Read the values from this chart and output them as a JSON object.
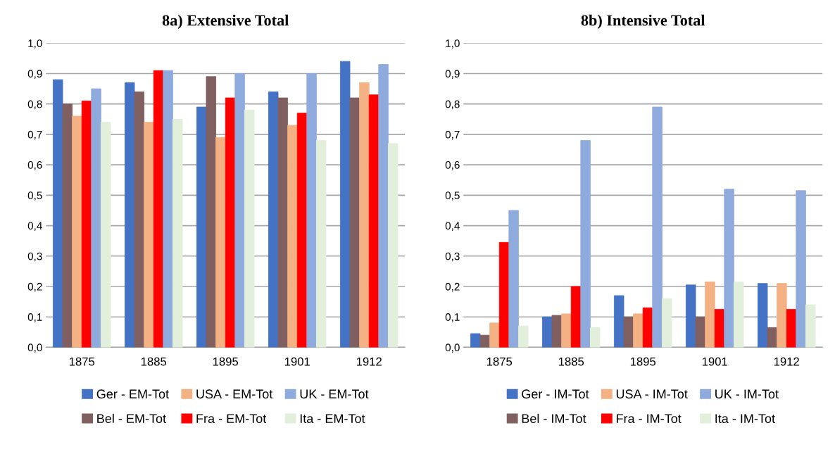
{
  "chart_data": [
    {
      "type": "bar",
      "title": "8a) Extensive Total",
      "categories": [
        "1875",
        "1885",
        "1895",
        "1901",
        "1912"
      ],
      "series": [
        {
          "name": "Ger - EM-Tot",
          "color": "#4472c4",
          "values": [
            0.88,
            0.87,
            0.79,
            0.84,
            0.94
          ]
        },
        {
          "name": "Bel - EM-Tot",
          "color": "#7f5f5f",
          "values": [
            0.8,
            0.84,
            0.89,
            0.82,
            0.82
          ]
        },
        {
          "name": "USA - EM-Tot",
          "color": "#f4b183",
          "values": [
            0.76,
            0.74,
            0.69,
            0.73,
            0.87
          ]
        },
        {
          "name": "Fra - EM-Tot",
          "color": "#ff0000",
          "values": [
            0.81,
            0.91,
            0.82,
            0.77,
            0.83
          ]
        },
        {
          "name": "UK - EM-Tot",
          "color": "#8faadc",
          "values": [
            0.85,
            0.91,
            0.9,
            0.9,
            0.93
          ]
        },
        {
          "name": "Ita - EM-Tot",
          "color": "#e2efda",
          "values": [
            0.74,
            0.75,
            0.78,
            0.68,
            0.67
          ]
        }
      ],
      "ylim": [
        0,
        1
      ],
      "yticks": [
        {
          "value": 0,
          "label": "0,0"
        },
        {
          "value": 0.1,
          "label": "0,1"
        },
        {
          "value": 0.2,
          "label": "0,2"
        },
        {
          "value": 0.3,
          "label": "0,3"
        },
        {
          "value": 0.4,
          "label": "0,4"
        },
        {
          "value": 0.5,
          "label": "0,5"
        },
        {
          "value": 0.6,
          "label": "0,6"
        },
        {
          "value": 0.7,
          "label": "0,7"
        },
        {
          "value": 0.8,
          "label": "0,8"
        },
        {
          "value": 0.9,
          "label": "0,9"
        },
        {
          "value": 1,
          "label": "1,0"
        }
      ],
      "grid": "y",
      "legend": "bottom"
    },
    {
      "type": "bar",
      "title": "8b) Intensive Total",
      "categories": [
        "1875",
        "1885",
        "1895",
        "1901",
        "1912"
      ],
      "series": [
        {
          "name": "Ger - IM-Tot",
          "color": "#4472c4",
          "values": [
            0.045,
            0.1,
            0.17,
            0.205,
            0.21
          ]
        },
        {
          "name": "Bel - IM-Tot",
          "color": "#7f5f5f",
          "values": [
            0.04,
            0.105,
            0.1,
            0.1,
            0.065
          ]
        },
        {
          "name": "USA - IM-Tot",
          "color": "#f4b183",
          "values": [
            0.08,
            0.11,
            0.11,
            0.215,
            0.21
          ]
        },
        {
          "name": "Fra - IM-Tot",
          "color": "#ff0000",
          "values": [
            0.345,
            0.2,
            0.13,
            0.125,
            0.125
          ]
        },
        {
          "name": "UK - IM-Tot",
          "color": "#8faadc",
          "values": [
            0.45,
            0.68,
            0.79,
            0.52,
            0.515
          ]
        },
        {
          "name": "Ita - IM-Tot",
          "color": "#e2efda",
          "values": [
            0.07,
            0.065,
            0.16,
            0.215,
            0.14
          ]
        }
      ],
      "ylim": [
        0,
        1
      ],
      "yticks": [
        {
          "value": 0,
          "label": "0,0"
        },
        {
          "value": 0.1,
          "label": "0,1"
        },
        {
          "value": 0.2,
          "label": "0,2"
        },
        {
          "value": 0.3,
          "label": "0,3"
        },
        {
          "value": 0.4,
          "label": "0,4"
        },
        {
          "value": 0.5,
          "label": "0,5"
        },
        {
          "value": 0.6,
          "label": "0,6"
        },
        {
          "value": 0.7,
          "label": "0,7"
        },
        {
          "value": 0.8,
          "label": "0,8"
        },
        {
          "value": 0.9,
          "label": "0,9"
        },
        {
          "value": 1,
          "label": "1,0"
        }
      ],
      "grid": "y",
      "legend": "bottom"
    }
  ]
}
